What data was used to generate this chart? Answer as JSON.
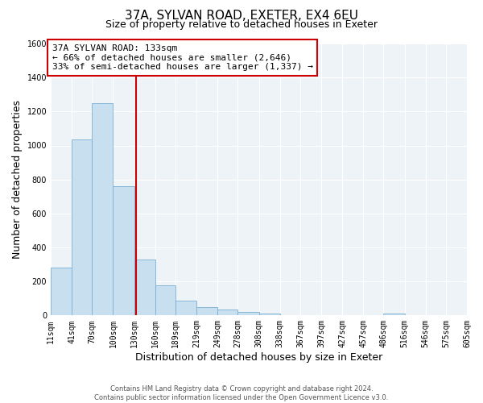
{
  "title": "37A, SYLVAN ROAD, EXETER, EX4 6EU",
  "subtitle": "Size of property relative to detached houses in Exeter",
  "xlabel": "Distribution of detached houses by size in Exeter",
  "ylabel": "Number of detached properties",
  "bin_edges": [
    11,
    41,
    70,
    100,
    130,
    160,
    189,
    219,
    249,
    278,
    308,
    338,
    367,
    397,
    427,
    457,
    486,
    516,
    546,
    575,
    605
  ],
  "bin_labels": [
    "11sqm",
    "41sqm",
    "70sqm",
    "100sqm",
    "130sqm",
    "160sqm",
    "189sqm",
    "219sqm",
    "249sqm",
    "278sqm",
    "308sqm",
    "338sqm",
    "367sqm",
    "397sqm",
    "427sqm",
    "457sqm",
    "486sqm",
    "516sqm",
    "546sqm",
    "575sqm",
    "605sqm"
  ],
  "counts": [
    280,
    1035,
    1250,
    760,
    330,
    175,
    85,
    50,
    35,
    20,
    10,
    0,
    0,
    0,
    0,
    0,
    10,
    0,
    0,
    0
  ],
  "bar_color": "#c8dff0",
  "bar_edge_color": "#7bafd4",
  "vline_x": 133,
  "vline_color": "#cc0000",
  "annotation_line1": "37A SYLVAN ROAD: 133sqm",
  "annotation_line2": "← 66% of detached houses are smaller (2,646)",
  "annotation_line3": "33% of semi-detached houses are larger (1,337) →",
  "annotation_box_facecolor": "#ffffff",
  "annotation_box_edgecolor": "#cc0000",
  "ylim": [
    0,
    1600
  ],
  "yticks": [
    0,
    200,
    400,
    600,
    800,
    1000,
    1200,
    1400,
    1600
  ],
  "footer_line1": "Contains HM Land Registry data © Crown copyright and database right 2024.",
  "footer_line2": "Contains public sector information licensed under the Open Government Licence v3.0.",
  "background_color": "#ffffff",
  "plot_bg_color": "#eef3f8",
  "grid_color": "#ffffff",
  "title_fontsize": 11,
  "subtitle_fontsize": 9,
  "axis_label_fontsize": 9,
  "tick_fontsize": 7,
  "annotation_fontsize": 8,
  "footer_fontsize": 6
}
